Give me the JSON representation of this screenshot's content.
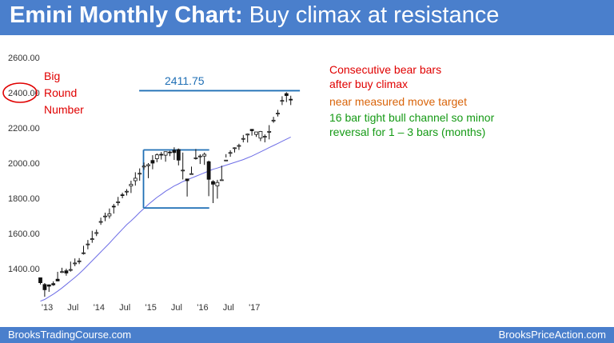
{
  "title": {
    "bold": "Emini Monthly Chart:",
    "rest": " Buy climax at resistance"
  },
  "footer": {
    "left": "BrooksTradingCourse.com",
    "right": "BrooksPriceAction.com"
  },
  "annotations": {
    "big_round": [
      "Big",
      "Round",
      "Number"
    ],
    "level_label": "2411.75",
    "red_lines": [
      "Consecutive bear bars",
      "after buy climax"
    ],
    "orange_line": "near measured move target",
    "green_lines": [
      "16 bar tight bull channel so minor",
      "reversal for 1 – 3 bars (months)"
    ]
  },
  "colors": {
    "header": "#4a7fcc",
    "level_line": "#1f6fb5",
    "moving_average": "#6e6ee6",
    "circle": "#e00000"
  },
  "chart_data": {
    "type": "candlestick",
    "timeframe": "monthly",
    "ylim": [
      1200,
      2640
    ],
    "y_ticks": [
      1400,
      1600,
      1800,
      2000,
      2200,
      2400,
      2600
    ],
    "y_tick_labels": [
      "1400.00",
      "1600.00",
      "1800.00",
      "2000.00",
      "2200.00",
      "2400.00",
      "2600.00"
    ],
    "x_ticks": [
      {
        "index": 1,
        "label": "'13"
      },
      {
        "index": 7,
        "label": "Jul"
      },
      {
        "index": 13,
        "label": "'14"
      },
      {
        "index": 19,
        "label": "Jul"
      },
      {
        "index": 25,
        "label": "'15"
      },
      {
        "index": 31,
        "label": "Jul"
      },
      {
        "index": 37,
        "label": "'16"
      },
      {
        "index": 43,
        "label": "Jul"
      },
      {
        "index": 49,
        "label": "'17"
      }
    ],
    "candles": [
      [
        1348,
        1350,
        1320,
        1310
      ],
      [
        1310,
        1318,
        1280,
        1240
      ],
      [
        1308,
        1310,
        1300,
        1268
      ],
      [
        1315,
        1328,
        1308,
        1302
      ],
      [
        1340,
        1382,
        1330,
        1328
      ],
      [
        1382,
        1405,
        1383,
        1375
      ],
      [
        1388,
        1400,
        1375,
        1360
      ],
      [
        1395,
        1440,
        1395,
        1383
      ],
      [
        1430,
        1458,
        1432,
        1414
      ],
      [
        1442,
        1460,
        1444,
        1426
      ],
      [
        1490,
        1530,
        1490,
        1480
      ],
      [
        1540,
        1563,
        1540,
        1510
      ],
      [
        1570,
        1615,
        1570,
        1547
      ],
      [
        1600,
        1622,
        1605,
        1585
      ],
      [
        1668,
        1690,
        1668,
        1649
      ],
      [
        1696,
        1718,
        1699,
        1670
      ],
      [
        1700,
        1742,
        1712,
        1685
      ],
      [
        1755,
        1768,
        1753,
        1713
      ],
      [
        1775,
        1808,
        1780,
        1758
      ],
      [
        1820,
        1832,
        1816,
        1800
      ],
      [
        1840,
        1852,
        1840,
        1816
      ],
      [
        1870,
        1900,
        1880,
        1830
      ],
      [
        1900,
        1948,
        1914,
        1872
      ],
      [
        1940,
        1970,
        1942,
        1900
      ],
      [
        1978,
        2003,
        1983,
        1962
      ],
      [
        1985,
        2000,
        1991,
        1914
      ],
      [
        2015,
        2045,
        2000,
        1965
      ],
      [
        2025,
        2055,
        2047,
        2005
      ],
      [
        2050,
        2063,
        2048,
        2020
      ],
      [
        2045,
        2065,
        2065,
        2008
      ],
      [
        2063,
        2070,
        2060,
        2040
      ],
      [
        2073,
        2090,
        2060,
        2018
      ],
      [
        2077,
        2083,
        2017,
        1987
      ],
      [
        1960,
        2060,
        1960,
        1907
      ],
      [
        1910,
        1905,
        1900,
        1810
      ],
      [
        1940,
        1980,
        1940,
        1940
      ],
      [
        2030,
        2080,
        2030,
        2020
      ],
      [
        2040,
        2050,
        2040,
        1995
      ],
      [
        2040,
        2060,
        2050,
        1990
      ],
      [
        2008,
        2014,
        1908,
        1812
      ],
      [
        1895,
        1903,
        1880,
        1773
      ],
      [
        1870,
        1905,
        1890,
        1798
      ],
      [
        1905,
        1985,
        1905,
        1908
      ],
      [
        2017,
        2051,
        2017,
        2032
      ],
      [
        2060,
        2073,
        2060,
        2036
      ],
      [
        2084,
        2090,
        2087,
        2060
      ],
      [
        2100,
        2110,
        2100,
        2075
      ],
      [
        2140,
        2160,
        2140,
        2118
      ],
      [
        2160,
        2168,
        2165,
        2117
      ],
      [
        2192,
        2191,
        2184,
        2156
      ],
      [
        2163,
        2177,
        2177,
        2149
      ],
      [
        2142,
        2183,
        2180,
        2125
      ],
      [
        2152,
        2163,
        2152,
        2118
      ],
      [
        2180,
        2216,
        2180,
        2135
      ],
      [
        2243,
        2263,
        2244,
        2229
      ],
      [
        2283,
        2303,
        2284,
        2265
      ],
      [
        2356,
        2380,
        2356,
        2330
      ],
      [
        2395,
        2403,
        2384,
        2347
      ],
      [
        2363,
        2383,
        2362,
        2330
      ]
    ],
    "moving_average": [
      1215,
      1225,
      1240,
      1255,
      1272,
      1290,
      1310,
      1330,
      1350,
      1372,
      1395,
      1420,
      1445,
      1470,
      1495,
      1520,
      1545,
      1572,
      1598,
      1624,
      1650,
      1672,
      1695,
      1720,
      1742,
      1765,
      1785,
      1805,
      1822,
      1840,
      1855,
      1870,
      1882,
      1895,
      1905,
      1915,
      1925,
      1935,
      1945,
      1955,
      1965,
      1972,
      1980,
      1988,
      1996,
      2004,
      2012,
      2020,
      2030,
      2040,
      2052,
      2064,
      2076,
      2088,
      2100,
      2112,
      2124,
      2136,
      2148
    ],
    "levels": [
      {
        "label": "2411.75",
        "value": 2411.75,
        "from_index": 24,
        "to_index": 59
      },
      {
        "label": "",
        "value": 2075,
        "from_index": 25,
        "to_index": 38
      },
      {
        "label": "",
        "value": 1745,
        "from_index": 25,
        "to_index": 38
      }
    ],
    "range_box_left_index": 25,
    "circled_tick": 2400
  }
}
